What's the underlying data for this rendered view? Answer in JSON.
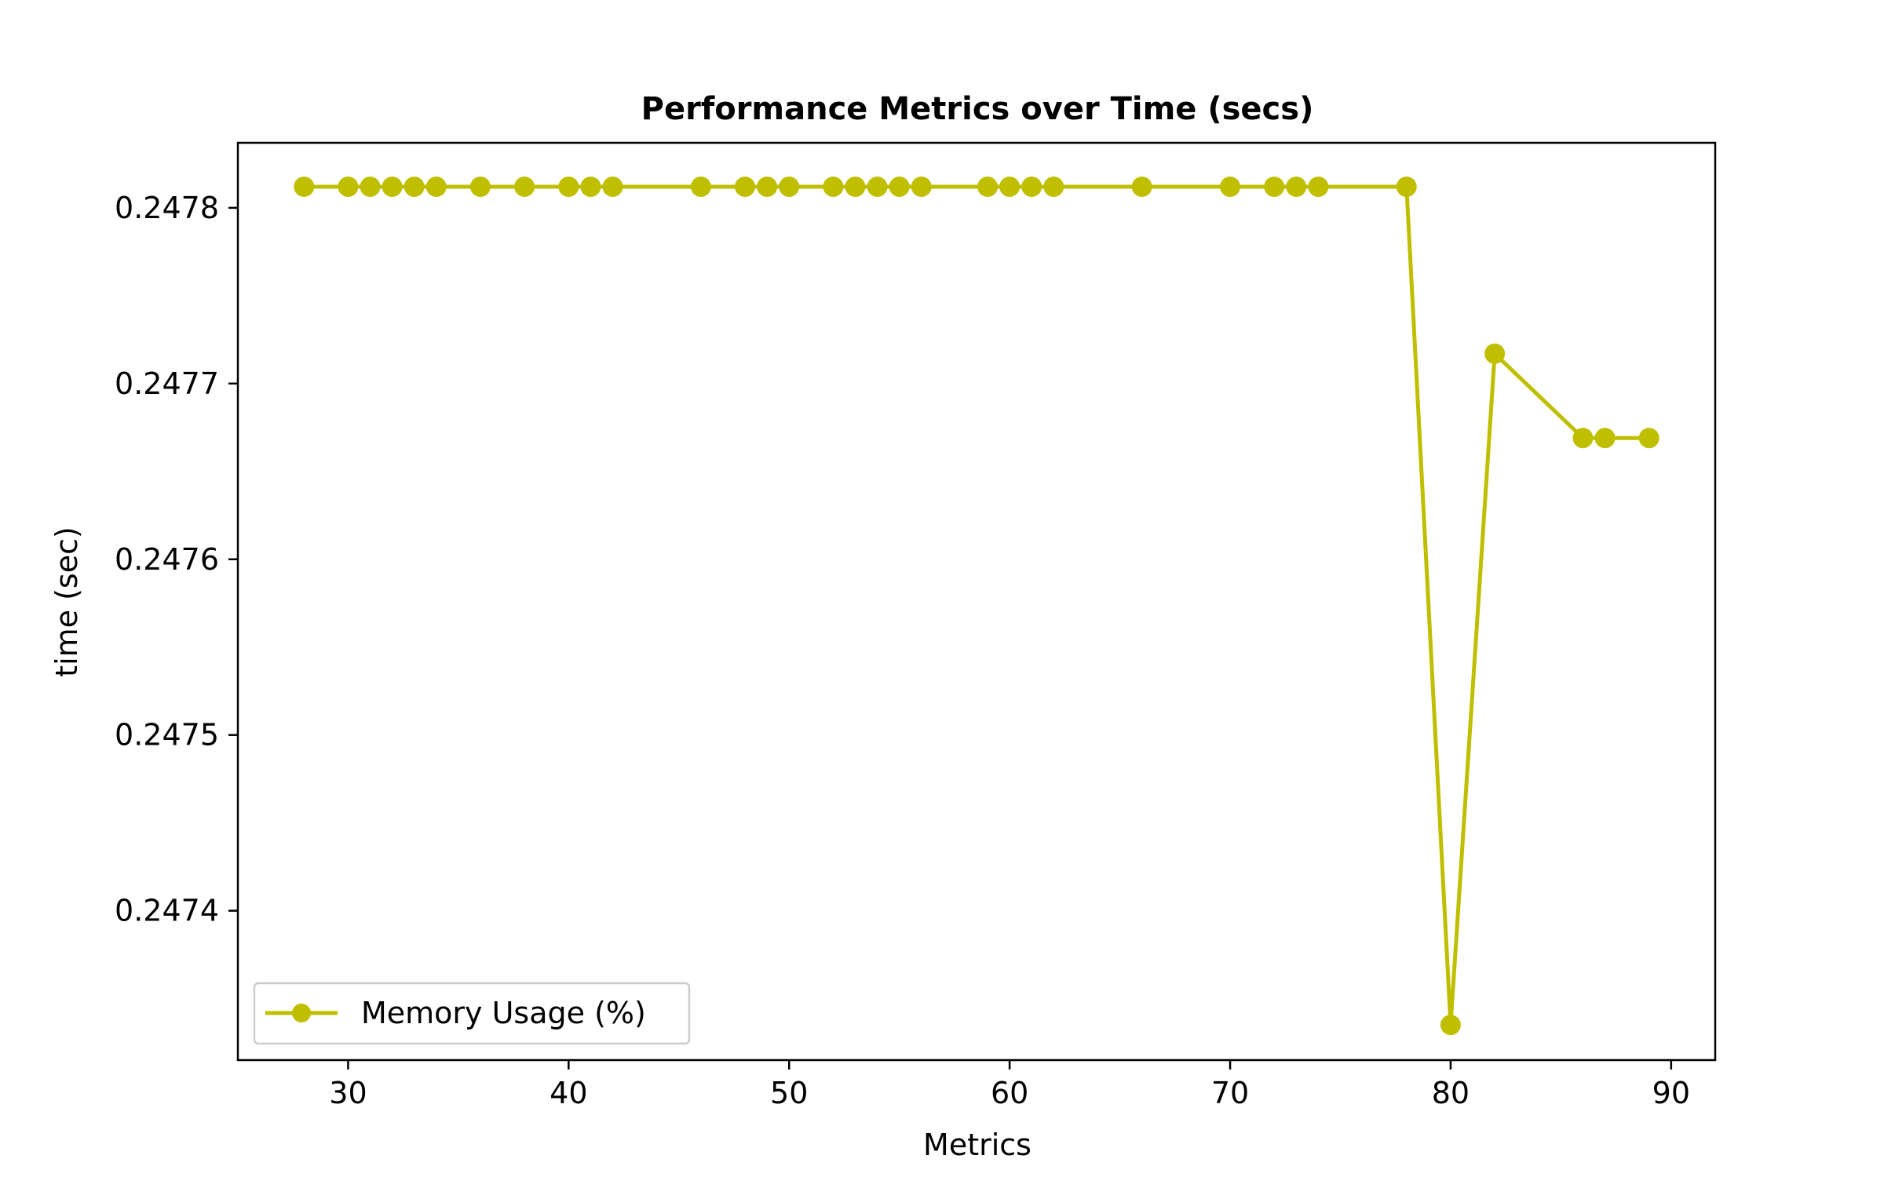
{
  "chart_data": {
    "type": "line",
    "title": "Performance Metrics over Time (secs)",
    "xlabel": "Metrics",
    "ylabel": "time (sec)",
    "xlim": [
      25,
      92
    ],
    "ylim": [
      0.247315,
      0.247837
    ],
    "xticks": [
      30,
      40,
      50,
      60,
      70,
      80,
      90
    ],
    "yticks": [
      0.2474,
      0.2475,
      0.2476,
      0.2477,
      0.2478
    ],
    "xtick_labels": [
      "30",
      "40",
      "50",
      "60",
      "70",
      "80",
      "90"
    ],
    "ytick_labels": [
      "0.2474",
      "0.2475",
      "0.2476",
      "0.2477",
      "0.2478"
    ],
    "grid": false,
    "legend_position": "lower-left",
    "colors": {
      "series": "#bfbf00",
      "axes": "#000000",
      "legend_border": "#cccccc"
    },
    "series": [
      {
        "name": "Memory Usage (%)",
        "marker": "circle",
        "x": [
          28,
          30,
          31,
          32,
          33,
          34,
          36,
          38,
          40,
          41,
          42,
          46,
          48,
          49,
          50,
          52,
          53,
          54,
          55,
          56,
          59,
          60,
          61,
          62,
          66,
          70,
          72,
          73,
          74,
          78,
          80,
          82,
          86,
          87,
          89
        ],
        "y": [
          0.247812,
          0.247812,
          0.247812,
          0.247812,
          0.247812,
          0.247812,
          0.247812,
          0.247812,
          0.247812,
          0.247812,
          0.247812,
          0.247812,
          0.247812,
          0.247812,
          0.247812,
          0.247812,
          0.247812,
          0.247812,
          0.247812,
          0.247812,
          0.247812,
          0.247812,
          0.247812,
          0.247812,
          0.247812,
          0.247812,
          0.247812,
          0.247812,
          0.247812,
          0.247812,
          0.247335,
          0.247717,
          0.247669,
          0.247669,
          0.247669
        ]
      }
    ]
  }
}
